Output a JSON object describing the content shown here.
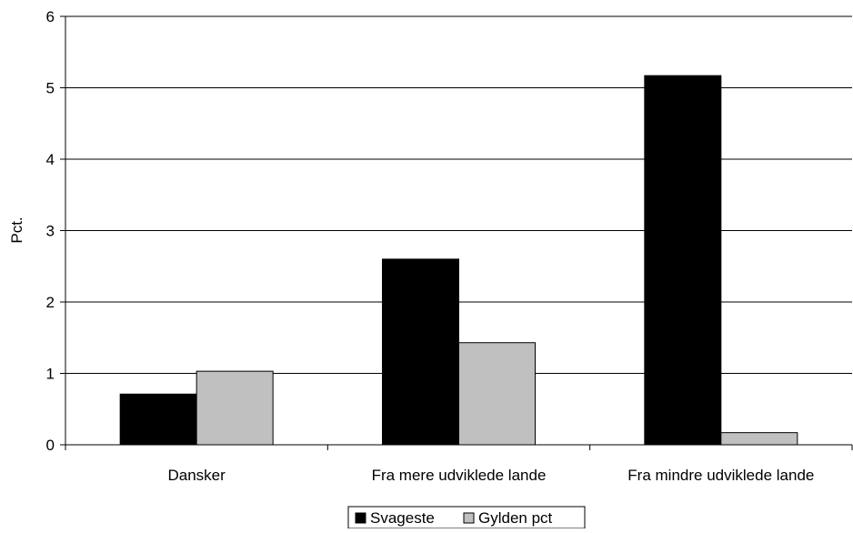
{
  "chart_data": {
    "type": "bar",
    "title": "",
    "xlabel": "",
    "ylabel": "Pct.",
    "ylim": [
      0,
      6
    ],
    "yticks": [
      "0",
      "1",
      "2",
      "3",
      "4",
      "5",
      "6"
    ],
    "grid": true,
    "legend_position": "bottom",
    "categories": [
      "Dansker",
      "Fra mere udviklede lande",
      "Fra mindre udviklede lande"
    ],
    "series": [
      {
        "name": "Svageste",
        "color": "#000000",
        "values": [
          0.71,
          2.6,
          5.17
        ]
      },
      {
        "name": "Gylden pct",
        "color": "#c0c0c0",
        "values": [
          1.03,
          1.43,
          0.17
        ]
      }
    ]
  }
}
